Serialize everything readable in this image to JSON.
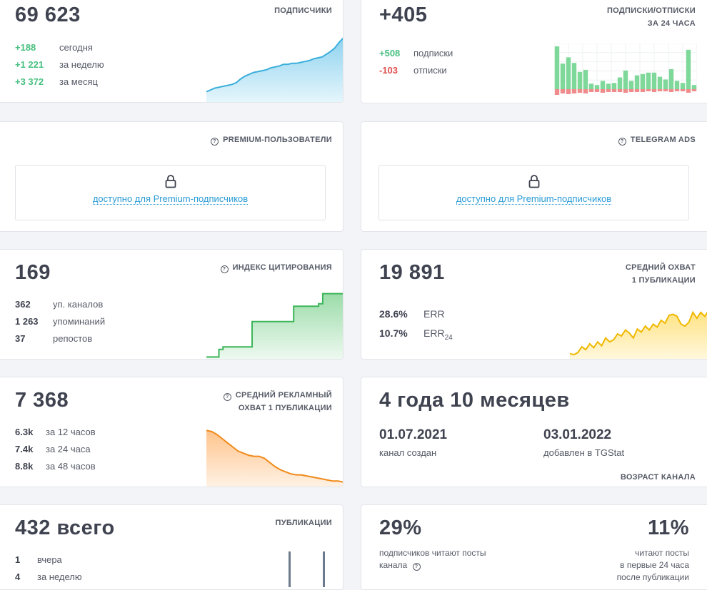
{
  "subscribers": {
    "total": "69 623",
    "caption": "ПОДПИСЧИКИ",
    "rows": [
      {
        "value": "+188",
        "label": "сегодня"
      },
      {
        "value": "+1 221",
        "label": "за неделю"
      },
      {
        "value": "+3 372",
        "label": "за месяц"
      }
    ]
  },
  "subs_unsubs": {
    "total": "+405",
    "caption_line1": "ПОДПИСКИ/ОТПИСКИ",
    "caption_line2": "ЗА 24 ЧАСА",
    "rows": [
      {
        "value": "+508",
        "label": "подписки"
      },
      {
        "value": "-103",
        "label": "отписки"
      }
    ]
  },
  "premium_users": {
    "caption": "PREMIUM-ПОЛЬЗОВАТЕЛИ",
    "locked_text": "доступно для Premium-подписчиков"
  },
  "telegram_ads": {
    "caption": "TELEGRAM ADS",
    "locked_text": "доступно для Premium-подписчиков"
  },
  "citation": {
    "total": "169",
    "caption": "ИНДЕКС ЦИТИРОВАНИЯ",
    "rows": [
      {
        "value": "362",
        "label": "уп. каналов"
      },
      {
        "value": "1 263",
        "label": "упоминаний"
      },
      {
        "value": "37",
        "label": "репостов"
      }
    ]
  },
  "avg_reach": {
    "total": "19 891",
    "caption_line1": "СРЕДНИЙ ОХВАТ",
    "caption_line2": "1 ПУБЛИКАЦИИ",
    "err_value": "28.6%",
    "err_label": "ERR",
    "err24_value": "10.7%",
    "err24_label": "ERR",
    "err24_sub": "24"
  },
  "ad_reach": {
    "total": "7 368",
    "caption_line1": "СРЕДНИЙ РЕКЛАМНЫЙ",
    "caption_line2": "ОХВАТ 1 ПУБЛИКАЦИИ",
    "rows": [
      {
        "value": "6.3k",
        "label": "за 12 часов"
      },
      {
        "value": "7.4k",
        "label": "за 24 часа"
      },
      {
        "value": "8.8k",
        "label": "за 48 часов"
      }
    ]
  },
  "channel_age": {
    "title": "4 года 10 месяцев",
    "created_date": "01.07.2021",
    "created_label": "канал создан",
    "added_date": "03.01.2022",
    "added_label": "добавлен в TGStat",
    "caption": "ВОЗРАСТ КАНАЛА"
  },
  "publications": {
    "total": "432 всего",
    "caption": "ПУБЛИКАЦИИ",
    "rows": [
      {
        "value": "1",
        "label": "вчера"
      },
      {
        "value": "4",
        "label": "за неделю"
      }
    ]
  },
  "readers": {
    "left_percent": "29%",
    "left_line1": "подписчиков читают посты",
    "left_line2": "канала",
    "right_percent": "11%",
    "right_line1": "читают посты",
    "right_line2": "в первые 24 часа",
    "right_line3": "после публикации"
  },
  "sparklines": {
    "subscribers": [
      12,
      14,
      16,
      17,
      18,
      19,
      20,
      22,
      26,
      29,
      31,
      33,
      34,
      35,
      36,
      38,
      39,
      40,
      42,
      42,
      43,
      43,
      44,
      45,
      46,
      48,
      49,
      50,
      53,
      56,
      60,
      66,
      71
    ],
    "citation": [
      2,
      2,
      2,
      8,
      10,
      10,
      10,
      10,
      10,
      10,
      10,
      30,
      30,
      30,
      30,
      30,
      30,
      30,
      30,
      30,
      30,
      42,
      42,
      42,
      42,
      42,
      42,
      44,
      52,
      52,
      52,
      52,
      52,
      52
    ],
    "avg_reach": [
      6,
      5,
      7,
      13,
      10,
      16,
      12,
      18,
      14,
      22,
      18,
      20,
      26,
      24,
      30,
      27,
      22,
      31,
      28,
      34,
      30,
      36,
      33,
      40,
      37,
      45,
      46,
      44,
      36,
      34,
      38,
      48,
      42,
      48,
      44,
      50,
      54
    ],
    "ad_reach": [
      55,
      54,
      51,
      47,
      43,
      39,
      35,
      33,
      31,
      30,
      30,
      28,
      24,
      20,
      17,
      15,
      13,
      12,
      12,
      11,
      10,
      9,
      8,
      7,
      6,
      6,
      5
    ],
    "subs_bars": [
      62,
      37,
      46,
      38,
      25,
      28,
      8,
      6,
      12,
      8,
      9,
      17,
      27,
      12,
      20,
      22,
      24,
      24,
      18,
      14,
      29,
      12,
      9,
      57,
      6
    ],
    "unsubs_bars": [
      8,
      6,
      7,
      6,
      5,
      6,
      4,
      4,
      5,
      4,
      4,
      4,
      5,
      4,
      4,
      4,
      3,
      4,
      3,
      3,
      4,
      3,
      3,
      5,
      3
    ]
  },
  "colors": {
    "positive": "#48c080",
    "negative": "#e0504f",
    "link": "#2a9bd6",
    "subs_line": "#3aaedb",
    "citation_line": "#3cb55a",
    "reach_line": "#f0b800",
    "ad_line": "#f08a1a"
  }
}
